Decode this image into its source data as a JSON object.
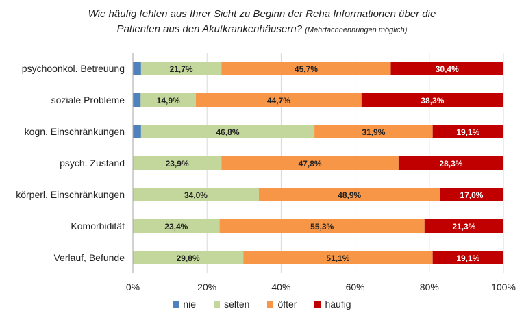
{
  "title_line1": "Wie häufig fehlen aus Ihrer Sicht zu Beginn der Reha Informationen über die",
  "title_line2": "Patienten aus den Akutkrankenhäusern?",
  "title_note": "(Mehrfachnennungen möglich)",
  "chart_data": {
    "type": "bar",
    "orientation": "horizontal",
    "stacked": "percent",
    "categories": [
      "psychoonkol. Betreuung",
      "soziale Probleme",
      "kogn. Einschränkungen",
      "psych. Zustand",
      "körperl. Einschränkungen",
      "Komorbidität",
      "Verlauf, Befunde"
    ],
    "series": [
      {
        "name": "nie",
        "color": "#4f81bd",
        "values": [
          2.2,
          2.1,
          2.2,
          0,
          0,
          0,
          0
        ],
        "labels": [
          "",
          "",
          "",
          "",
          "",
          "",
          ""
        ]
      },
      {
        "name": "selten",
        "color": "#c3d69b",
        "values": [
          21.7,
          14.9,
          46.8,
          23.9,
          34.0,
          23.4,
          29.8
        ],
        "labels": [
          "21,7%",
          "14,9%",
          "46,8%",
          "23,9%",
          "34,0%",
          "23,4%",
          "29,8%"
        ]
      },
      {
        "name": "öfter",
        "color": "#f79646",
        "values": [
          45.7,
          44.7,
          31.9,
          47.8,
          48.9,
          55.3,
          51.1
        ],
        "labels": [
          "45,7%",
          "44,7%",
          "31,9%",
          "47,8%",
          "48,9%",
          "55,3%",
          "51,1%"
        ]
      },
      {
        "name": "häufig",
        "color": "#c00000",
        "values": [
          30.4,
          38.3,
          19.1,
          28.3,
          17.0,
          21.3,
          19.1
        ],
        "labels": [
          "30,4%",
          "38,3%",
          "19,1%",
          "28,3%",
          "17,0%",
          "21,3%",
          "19,1%"
        ]
      }
    ],
    "xlim": [
      0,
      100
    ],
    "xticks": [
      "0%",
      "20%",
      "40%",
      "60%",
      "80%",
      "100%"
    ],
    "grid": true,
    "legend": "bottom"
  }
}
